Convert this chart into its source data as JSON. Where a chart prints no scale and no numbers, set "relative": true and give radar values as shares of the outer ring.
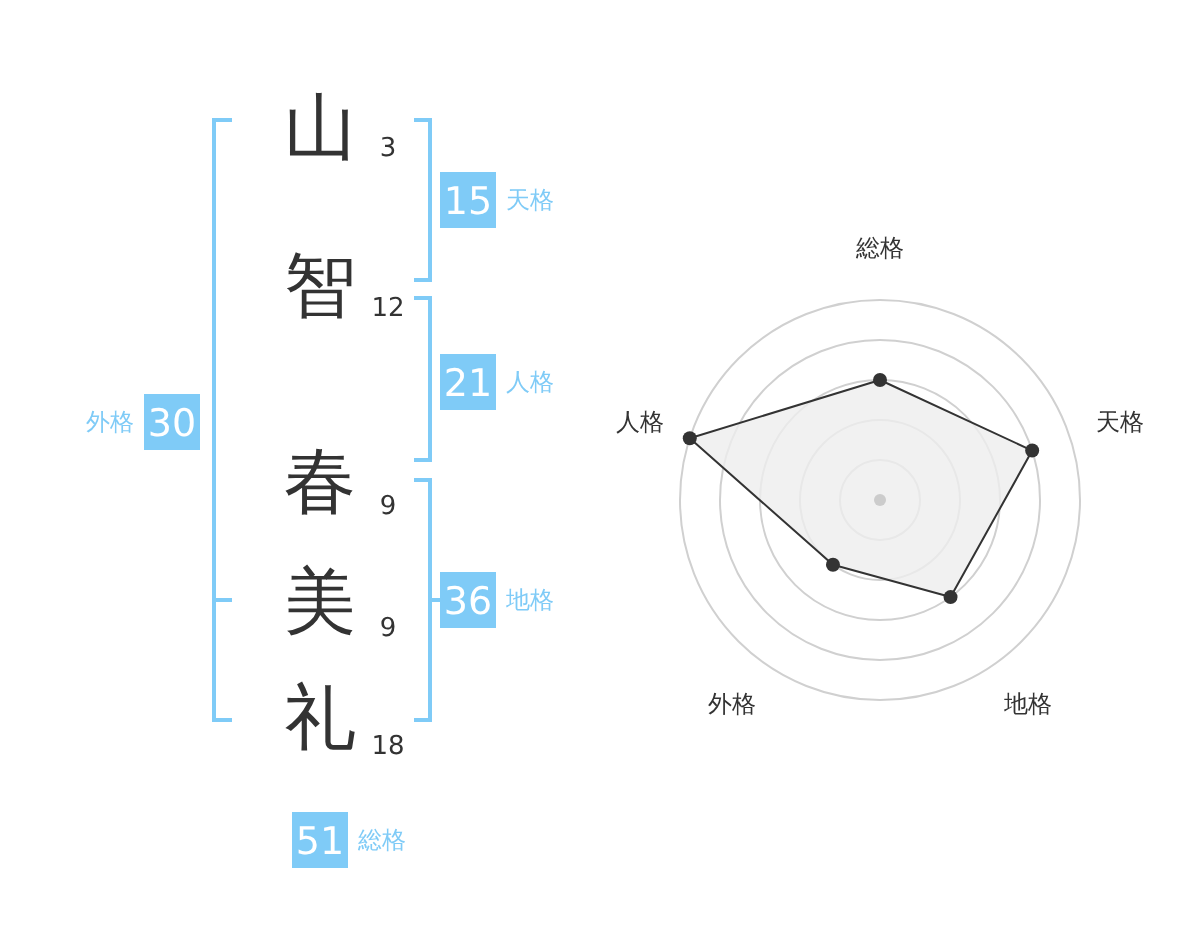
{
  "chart_data": [
    {
      "type": "other",
      "categories": [
        "山",
        "智",
        "春",
        "美",
        "礼"
      ],
      "values": [
        3,
        12,
        9,
        9,
        18
      ],
      "data_labels": true,
      "color": "#7fcbf7",
      "annotations": [
        "15",
        "天格",
        "21",
        "人格",
        "36",
        "地格",
        "30",
        "外格",
        "51",
        "総格"
      ]
    },
    {
      "type": "radar",
      "categories": [
        "総格",
        "天格",
        "地格",
        "外格",
        "人格"
      ],
      "relative": true,
      "marker": "circle",
      "series": [
        {
          "color": "#333333",
          "values": [
            0.6,
            0.8,
            0.6,
            0.4,
            1.0
          ]
        }
      ]
    }
  ]
}
